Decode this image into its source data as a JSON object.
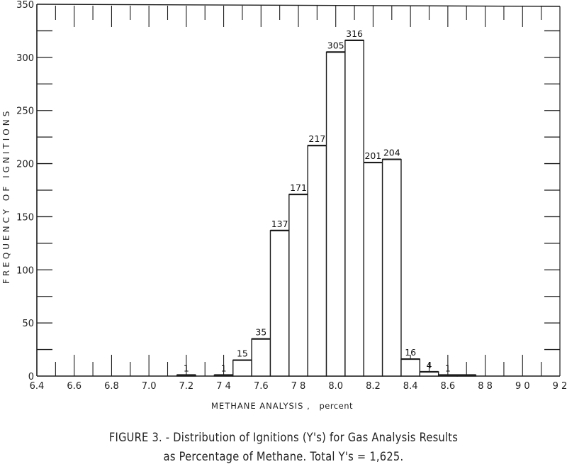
{
  "chart_data": {
    "type": "bar",
    "title": "",
    "xlabel": "METHANE ANALYSIS, percent",
    "ylabel": "FREQUENCY OF IGNITIONS",
    "xlim": [
      6.4,
      9.2
    ],
    "ylim": [
      0,
      350
    ],
    "grid": false,
    "legend": null,
    "x_tick_labels": [
      "6.4",
      "6.6",
      "6.8",
      "7.0",
      "7.2",
      "7.4",
      "7.6",
      "7.8",
      "8.0",
      "8.2",
      "8.4",
      "8.6",
      "8.8",
      "9.0",
      "9.2"
    ],
    "x_tick_labels_as_printed": [
      "6.4",
      "6.6",
      "6.8",
      "7.0",
      "7.2",
      "7 4",
      "7.6",
      "7 8",
      "8.0",
      "8.2",
      "8.4",
      "8.6",
      "8 8",
      "9 0",
      "9 2"
    ],
    "y_tick_labels": [
      "0",
      "50",
      "100",
      "150",
      "200",
      "250",
      "300",
      "350"
    ],
    "bin_width": 0.1,
    "categories": [
      "7.2",
      "7.4",
      "7.5",
      "7.6",
      "7.7",
      "7.8",
      "7.9",
      "8.0",
      "8.1",
      "8.2",
      "8.3",
      "8.4",
      "8.5",
      "8.6",
      "8.7"
    ],
    "values": [
      1,
      1,
      15,
      35,
      137,
      171,
      217,
      305,
      316,
      201,
      204,
      16,
      4,
      1,
      1
    ],
    "data_labels": [
      "1",
      "1",
      "15",
      "35",
      "137",
      "171",
      "217",
      "305",
      "316",
      "201",
      "204",
      "16",
      "4",
      "1",
      ""
    ],
    "total": 1625
  },
  "labels": {
    "ylabel": "FREQUENCY OF IGNITIONS",
    "xlabel_main": "METHANE ANALYSIS ,",
    "xlabel_unit": "percent"
  },
  "caption": {
    "line1": "FIGURE 3. - Distribution of Ignitions (Y's) for Gas Analysis Results",
    "line2": "as Percentage of Methane.  Total Y's = 1,625."
  }
}
